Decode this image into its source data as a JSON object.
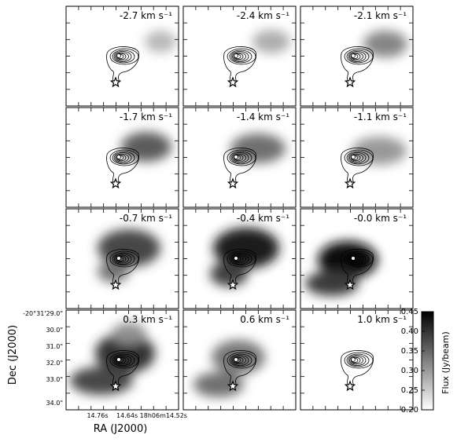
{
  "chart_data": {
    "type": "heatmap",
    "title": "",
    "xlabel": "RA (J2000)",
    "ylabel": "Dec (J2000)",
    "x_ticks": [
      "14.76s",
      "14.64s 18h06m14.52s"
    ],
    "y_ticks": [
      "-20°31'29.0\"",
      "30.0\"",
      "31.0\"",
      "32.0\"",
      "33.0\"",
      "34.0\""
    ],
    "colorbar": {
      "label": "Flux (Jy/beam)",
      "range": [
        0.2,
        0.45
      ],
      "ticks": [
        "0.45",
        "0.40",
        "0.35",
        "0.30",
        "0.25",
        "0.20"
      ],
      "colormap": "gray_r"
    },
    "grid": "4 rows x 3 columns",
    "velocity_unit": "km s-1",
    "panels": [
      {
        "velocity": "-2.7 km s⁻¹",
        "peak_flux": 0.27
      },
      {
        "velocity": "-2.4 km s⁻¹",
        "peak_flux": 0.28
      },
      {
        "velocity": "-2.1 km s⁻¹",
        "peak_flux": 0.32
      },
      {
        "velocity": "-1.7 km s⁻¹",
        "peak_flux": 0.36
      },
      {
        "velocity": "-1.4 km s⁻¹",
        "peak_flux": 0.34
      },
      {
        "velocity": "-1.1 km s⁻¹",
        "peak_flux": 0.3
      },
      {
        "velocity": "-0.7 km s⁻¹",
        "peak_flux": 0.38
      },
      {
        "velocity": "-0.4 km s⁻¹",
        "peak_flux": 0.42
      },
      {
        "velocity": "-0.0 km s⁻¹",
        "peak_flux": 0.44
      },
      {
        "velocity": "0.3 km s⁻¹",
        "peak_flux": 0.4
      },
      {
        "velocity": "0.6 km s⁻¹",
        "peak_flux": 0.34
      },
      {
        "velocity": "1.0 km s⁻¹",
        "peak_flux": 0.2
      }
    ]
  }
}
